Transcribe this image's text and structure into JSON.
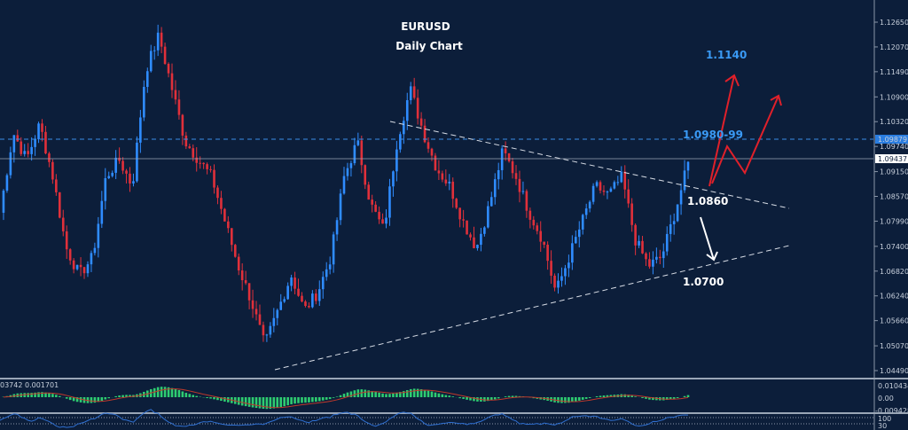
{
  "chart_data": {
    "type": "candlestick",
    "title": "EURUSD",
    "subtitle": "Daily Chart",
    "symbol": "EURUSD",
    "timeframe": "Daily",
    "ylim": [
      1.0449,
      1.1265
    ],
    "y_ticks": [
      "1.12650",
      "1.12070",
      "1.11490",
      "1.10900",
      "1.10320",
      "1.09740",
      "1.09150",
      "1.08570",
      "1.07990",
      "1.07400",
      "1.06820",
      "1.06240",
      "1.05660",
      "1.05070",
      "1.04490"
    ],
    "price_path_approx": [
      1.0819,
      1.1006,
      1.0943,
      1.1026,
      1.0902,
      1.0736,
      1.0673,
      1.0715,
      1.0902,
      1.0943,
      1.0881,
      1.1151,
      1.1234,
      1.1109,
      1.0985,
      1.0943,
      1.0902,
      1.0798,
      1.0694,
      1.0611,
      1.0507,
      1.059,
      1.0673,
      1.059,
      1.0632,
      1.0715,
      1.0902,
      1.0985,
      1.0839,
      1.0777,
      1.0985,
      1.1109,
      1.1006,
      1.0922,
      1.0881,
      1.0798,
      1.0736,
      1.0839,
      1.0964,
      1.0902,
      1.0819,
      1.0756,
      1.0632,
      1.0715,
      1.0798,
      1.0881,
      1.086,
      1.0902,
      1.0756,
      1.0694,
      1.0715,
      1.0819,
      1.0933
    ],
    "current_bid": "1.09879",
    "current_price": "1.09437",
    "levels": {
      "resistance_dashed": 1.09879,
      "current_line": 1.09437
    },
    "annotations": {
      "target_high": "1.1140",
      "resistance": "1.0980-99",
      "support_mid": "1.0860",
      "support_low": "1.0700"
    },
    "bull_color": "#2f8cff",
    "bear_color": "#e0303a",
    "macd": {
      "readout": "03742 0.001701",
      "y_ticks": [
        "0.010434",
        "0.00",
        "-0.009428"
      ],
      "hist_color": "#2ecc71",
      "signal_color": "#c0392b"
    },
    "lower_panel": {
      "y_ticks": [
        "100",
        "30"
      ]
    }
  }
}
